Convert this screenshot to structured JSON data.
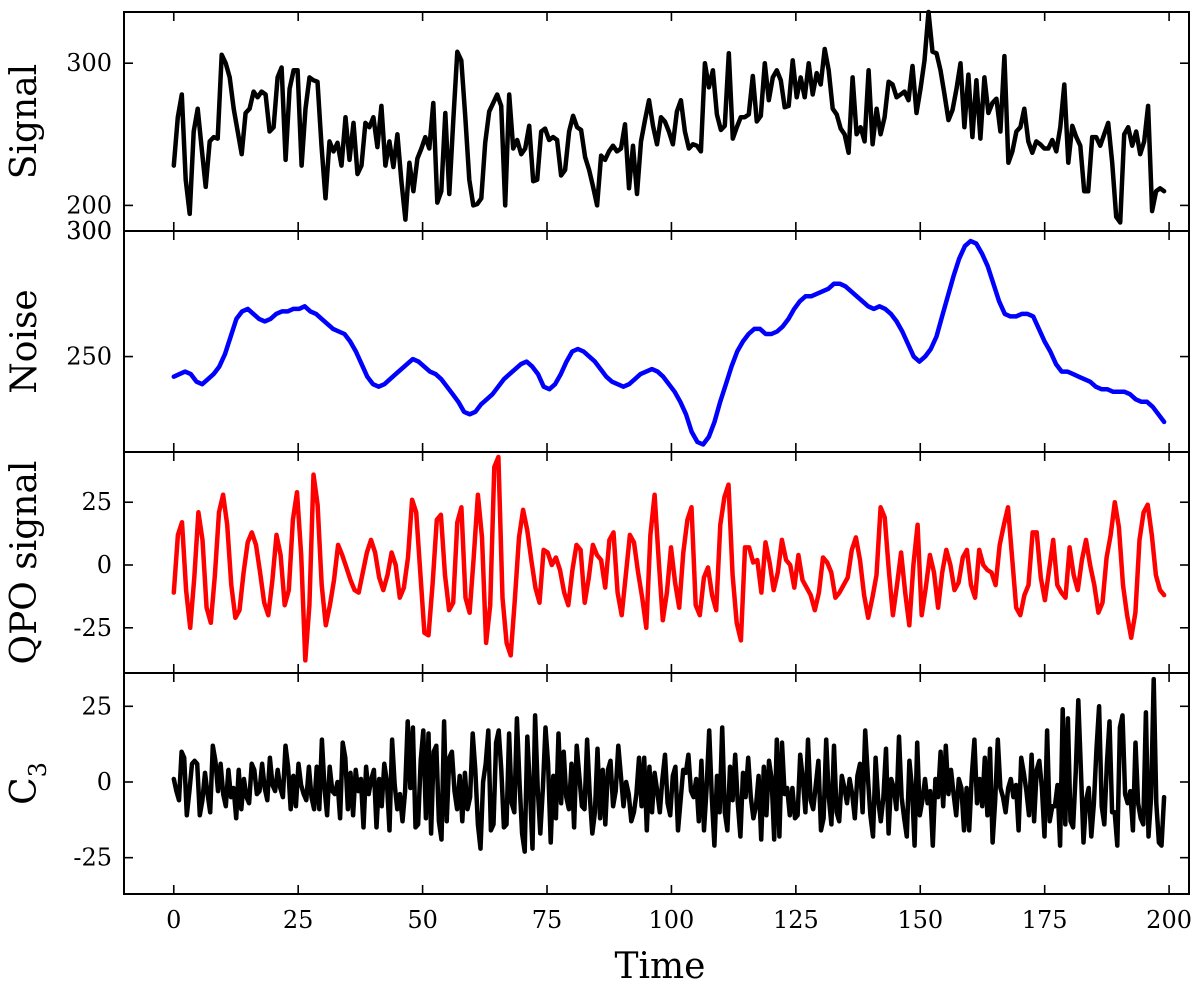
{
  "chart_data": {
    "type": "line",
    "xlabel": "Time",
    "xlim": [
      -10,
      204
    ],
    "x_ticks": [
      0,
      25,
      50,
      75,
      100,
      125,
      150,
      175,
      200
    ],
    "x_step": 1,
    "grid": false,
    "panels": [
      {
        "id": "signal",
        "ylabel": "Signal",
        "ylabel_sub": "",
        "color": "#000000",
        "ylim": [
          182,
          336
        ],
        "y_ticks": [
          200,
          300
        ],
        "extra_tick_labels": [
          {
            "value": 182,
            "label": "300"
          }
        ],
        "values": [
          228,
          262,
          278,
          218,
          194,
          252,
          268,
          240,
          213,
          245,
          248,
          247,
          306,
          300,
          290,
          268,
          252,
          236,
          265,
          268,
          280,
          276,
          280,
          278,
          252,
          255,
          290,
          297,
          232,
          282,
          295,
          295,
          228,
          268,
          290,
          288,
          287,
          242,
          205,
          245,
          238,
          244,
          228,
          262,
          232,
          258,
          222,
          228,
          258,
          255,
          262,
          241,
          270,
          228,
          245,
          227,
          250,
          217,
          190,
          230,
          210,
          233,
          240,
          248,
          240,
          272,
          202,
          210,
          265,
          208,
          260,
          308,
          302,
          262,
          218,
          200,
          201,
          205,
          244,
          266,
          272,
          278,
          270,
          200,
          278,
          240,
          246,
          236,
          240,
          256,
          217,
          218,
          252,
          254,
          246,
          248,
          246,
          221,
          225,
          252,
          263,
          255,
          253,
          234,
          225,
          213,
          200,
          235,
          232,
          238,
          242,
          238,
          240,
          257,
          212,
          242,
          208,
          245,
          260,
          274,
          256,
          243,
          262,
          259,
          252,
          243,
          266,
          274,
          252,
          240,
          243,
          242,
          238,
          300,
          283,
          295,
          264,
          253,
          256,
          307,
          247,
          255,
          262,
          262,
          264,
          291,
          259,
          263,
          300,
          274,
          290,
          295,
          288,
          269,
          270,
          302,
          276,
          290,
          276,
          300,
          278,
          293,
          285,
          310,
          295,
          268,
          264,
          254,
          250,
          237,
          290,
          250,
          255,
          245,
          295,
          243,
          268,
          250,
          262,
          287,
          285,
          276,
          278,
          280,
          274,
          298,
          265,
          282,
          302,
          336,
          308,
          307,
          295,
          278,
          260,
          267,
          282,
          300,
          255,
          292,
          248,
          288,
          247,
          290,
          265,
          272,
          275,
          252,
          305,
          230,
          238,
          252,
          255,
          268,
          245,
          237,
          245,
          243,
          240,
          240,
          246,
          238,
          255,
          285,
          230,
          256,
          248,
          242,
          210,
          210,
          248,
          248,
          242,
          250,
          258,
          230,
          192,
          188,
          250,
          255,
          242,
          252,
          236,
          245,
          270,
          196,
          210,
          212,
          210
        ]
      },
      {
        "id": "noise",
        "ylabel": "Noise",
        "ylabel_sub": "",
        "color": "#0000ff",
        "ylim": [
          212,
          300
        ],
        "y_ticks": [
          250,
          300
        ],
        "values": [
          242,
          243,
          244,
          243,
          240,
          239,
          241,
          243,
          246,
          251,
          258,
          265,
          268,
          269,
          267,
          265,
          264,
          265,
          267,
          268,
          268,
          269,
          269,
          270,
          268,
          267,
          265,
          263,
          261,
          260,
          259,
          256,
          252,
          247,
          242,
          239,
          238,
          239,
          241,
          243,
          245,
          247,
          249,
          248,
          246,
          244,
          243,
          241,
          238,
          235,
          232,
          228,
          227,
          228,
          231,
          233,
          235,
          238,
          241,
          243,
          245,
          247,
          248,
          246,
          243,
          238,
          237,
          239,
          243,
          248,
          252,
          253,
          252,
          250,
          248,
          245,
          242,
          240,
          239,
          238,
          239,
          241,
          243,
          244,
          245,
          244,
          242,
          239,
          236,
          232,
          227,
          220,
          216,
          215,
          218,
          224,
          232,
          239,
          246,
          252,
          256,
          259,
          261,
          261,
          259,
          259,
          260,
          262,
          265,
          269,
          272,
          274,
          274,
          275,
          276,
          277,
          279,
          279,
          278,
          276,
          274,
          272,
          270,
          269,
          270,
          269,
          267,
          264,
          260,
          255,
          250,
          248,
          250,
          253,
          258,
          266,
          274,
          282,
          289,
          294,
          296,
          295,
          291,
          286,
          279,
          272,
          267,
          266,
          266,
          267,
          267,
          266,
          261,
          256,
          252,
          247,
          244,
          244,
          243,
          242,
          241,
          240,
          238,
          237,
          237,
          236,
          236,
          236,
          235,
          233,
          232,
          232,
          230,
          227,
          224
        ]
      },
      {
        "id": "qpo",
        "ylabel": "QPO signal",
        "ylabel_sub": "",
        "color": "#ff0000",
        "ylim": [
          -43,
          45
        ],
        "y_ticks": [
          -25,
          0,
          25
        ],
        "values": [
          -11,
          12,
          17,
          -10,
          -25,
          -5,
          21,
          10,
          -17,
          -23,
          -4,
          21,
          28,
          16,
          -8,
          -21,
          -18,
          -3,
          9,
          13,
          8,
          -3,
          -15,
          -20,
          -6,
          12,
          4,
          -16,
          -10,
          18,
          29,
          4,
          -38,
          -16,
          36,
          24,
          -8,
          -24,
          -16,
          -6,
          8,
          4,
          -1,
          -6,
          -10,
          -11,
          -3,
          5,
          10,
          5,
          -5,
          -10,
          -4,
          5,
          0,
          -13,
          -9,
          3,
          26,
          21,
          -3,
          -27,
          -28,
          -7,
          18,
          20,
          -4,
          -18,
          -15,
          17,
          23,
          -13,
          -19,
          3,
          28,
          11,
          -31,
          -16,
          39,
          43,
          -13,
          -31,
          -36,
          -14,
          11,
          22,
          14,
          2,
          -9,
          -15,
          6,
          5,
          0,
          3,
          -2,
          -11,
          -16,
          -2,
          8,
          6,
          -15,
          -5,
          8,
          4,
          2,
          -9,
          10,
          13,
          -11,
          -20,
          -4,
          12,
          9,
          -3,
          -13,
          -25,
          12,
          28,
          2,
          -22,
          -11,
          7,
          -7,
          -17,
          5,
          18,
          23,
          -16,
          -20,
          -5,
          -1,
          -12,
          -18,
          16,
          27,
          32,
          -4,
          -23,
          -30,
          7,
          7,
          1,
          2,
          -11,
          9,
          1,
          -10,
          -3,
          10,
          2,
          0,
          -9,
          4,
          -6,
          -9,
          -12,
          -18,
          -11,
          3,
          1,
          -3,
          -13,
          -11,
          -8,
          -5,
          6,
          11,
          2,
          -12,
          -21,
          -13,
          -4,
          23,
          19,
          -2,
          -20,
          -8,
          5,
          -11,
          -24,
          0,
          16,
          -20,
          -9,
          4,
          -3,
          -17,
          -3,
          6,
          0,
          -10,
          -7,
          3,
          6,
          -8,
          -13,
          6,
          0,
          -2,
          -3,
          -8,
          8,
          16,
          23,
          3,
          -17,
          -20,
          -12,
          -8,
          13,
          13,
          -5,
          -14,
          -2,
          10,
          -8,
          -11,
          -13,
          7,
          -4,
          -10,
          2,
          10,
          0,
          -8,
          -19,
          -15,
          3,
          12,
          25,
          15,
          -8,
          -20,
          -29,
          -19,
          10,
          21,
          24,
          12,
          -4,
          -10,
          -12
        ]
      },
      {
        "id": "c3",
        "ylabel": "C",
        "ylabel_sub": "3",
        "color": "#000000",
        "ylim": [
          -37,
          36
        ],
        "y_ticks": [
          -25,
          0,
          25
        ],
        "values": [
          1,
          -3,
          -6,
          10,
          8,
          -11,
          -3,
          6,
          7,
          6,
          -11,
          -6,
          3,
          -4,
          -10,
          12,
          7,
          -3,
          6,
          -4,
          -8,
          4,
          -5,
          -2,
          -12,
          4,
          -9,
          1,
          -5,
          -7,
          6,
          4,
          -4,
          -3,
          6,
          -2,
          -6,
          8,
          -1,
          -3,
          4,
          -2,
          -5,
          12,
          5,
          -9,
          2,
          -8,
          6,
          -1,
          -4,
          -6,
          5,
          -5,
          -9,
          5,
          -9,
          14,
          -2,
          -11,
          5,
          -3,
          -4,
          0,
          -12,
          13,
          8,
          -9,
          3,
          -11,
          4,
          -3,
          1,
          -15,
          5,
          -4,
          1,
          4,
          -15,
          1,
          -8,
          6,
          0,
          -16,
          14,
          -1,
          -9,
          -4,
          -13,
          -3,
          20,
          -2,
          18,
          -15,
          -14,
          7,
          17,
          -12,
          16,
          -17,
          10,
          12,
          -13,
          -19,
          20,
          -13,
          8,
          10,
          -3,
          -9,
          2,
          -13,
          3,
          -9,
          -5,
          16,
          4,
          -14,
          -22,
          0,
          6,
          17,
          -16,
          -14,
          13,
          17,
          4,
          -15,
          -14,
          16,
          -7,
          -10,
          21,
          0,
          -17,
          -23,
          15,
          -2,
          -22,
          22,
          -2,
          -17,
          -2,
          18,
          6,
          -20,
          2,
          -12,
          16,
          -7,
          10,
          -5,
          -9,
          6,
          -15,
          12,
          2,
          -8,
          -9,
          14,
          -4,
          -17,
          -10,
          11,
          -12,
          4,
          -14,
          4,
          7,
          -8,
          -3,
          12,
          2,
          -8,
          0,
          -4,
          -13,
          -10,
          -4,
          8,
          -8,
          8,
          -16,
          5,
          -10,
          3,
          -3,
          -10,
          1,
          9,
          -7,
          -11,
          2,
          5,
          -16,
          -6,
          4,
          3,
          9,
          -3,
          -5,
          1,
          -13,
          7,
          -16,
          -2,
          17,
          -5,
          -21,
          2,
          -10,
          18,
          -10,
          -16,
          5,
          -6,
          9,
          -7,
          -18,
          3,
          -5,
          8,
          -5,
          -12,
          -8,
          2,
          -19,
          5,
          -11,
          7,
          1,
          -19,
          14,
          -18,
          13,
          -4,
          -2,
          -11,
          -2,
          -12,
          -11,
          9,
          1,
          -10,
          14,
          -6,
          -9,
          -1,
          7,
          -16,
          -12,
          14,
          -5,
          -14,
          12,
          -10,
          -13,
          2,
          -2,
          -7,
          1,
          -4,
          -12,
          2,
          6,
          -10,
          17,
          2,
          -11,
          -18,
          8,
          -6,
          -13,
          -5,
          11,
          -17,
          1,
          -2,
          -9,
          15,
          -5,
          -12,
          -18,
          7,
          -2,
          -21,
          13,
          -11,
          -6,
          1,
          -7,
          -3,
          -21,
          1,
          -5,
          10,
          -8,
          12,
          -4,
          4,
          -4,
          -11,
          1,
          -2,
          -16,
          -2,
          -16,
          2,
          14,
          -7,
          1,
          -8,
          8,
          -11,
          11,
          -20,
          -6,
          14,
          -2,
          -5,
          -10,
          -2,
          1,
          -5,
          -1,
          -16,
          8,
          3,
          -3,
          -11,
          9,
          -13,
          4,
          7,
          -2,
          -18,
          17,
          -13,
          -8,
          -8,
          -1,
          -21,
          24,
          -14,
          21,
          -13,
          -15,
          3,
          27,
          4,
          -20,
          -6,
          -2,
          -18,
          -7,
          11,
          25,
          -8,
          -14,
          6,
          20,
          -10,
          -10,
          -21,
          18,
          22,
          -4,
          -7,
          -3,
          -16,
          13,
          -7,
          -12,
          -14,
          23,
          -18,
          -5,
          34,
          -7,
          -20,
          -21,
          -5
        ]
      }
    ]
  }
}
